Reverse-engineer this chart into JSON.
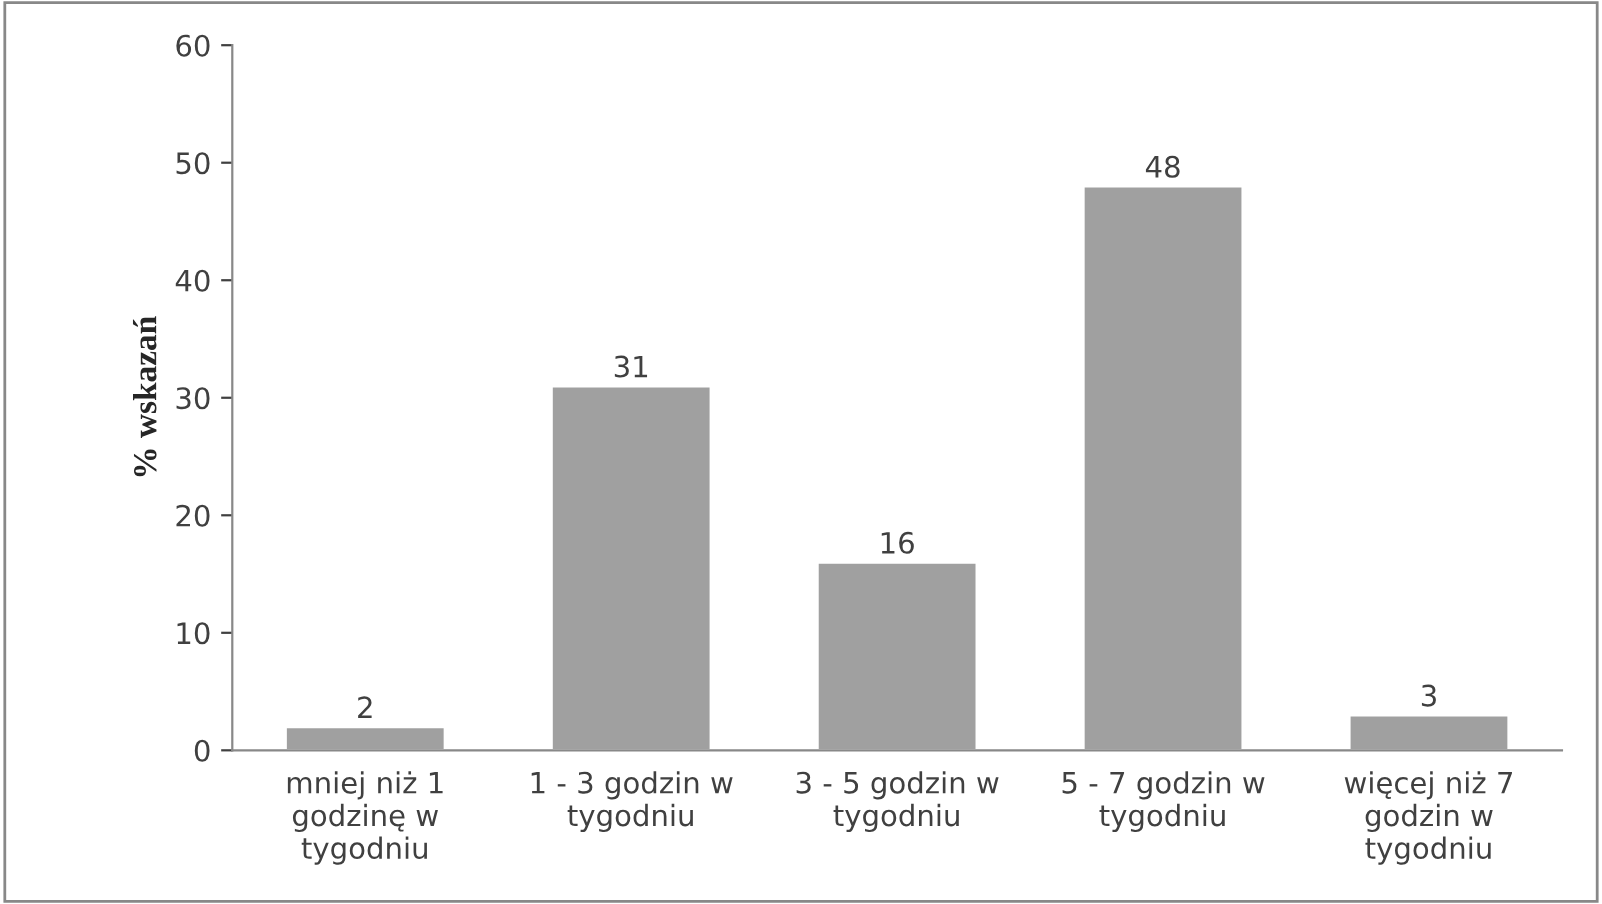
{
  "chart_data": {
    "type": "bar",
    "ylabel": "% wskazań",
    "categories": [
      "mniej niż 1\ngodzinę w\ntygodniu",
      "1 - 3 godzin w\ntygodniu",
      "3 - 5 godzin w\ntygodniu",
      "5 - 7 godzin w\ntygodniu",
      "więcej niż 7\ngodzin w\ntygodniu"
    ],
    "values": [
      2,
      31,
      16,
      48,
      3
    ],
    "color": "#a0a0a0",
    "ylim": [
      0,
      60
    ],
    "yticks": [
      0,
      10,
      20,
      30,
      40,
      50,
      60
    ],
    "grid": false,
    "data_labels": true
  }
}
